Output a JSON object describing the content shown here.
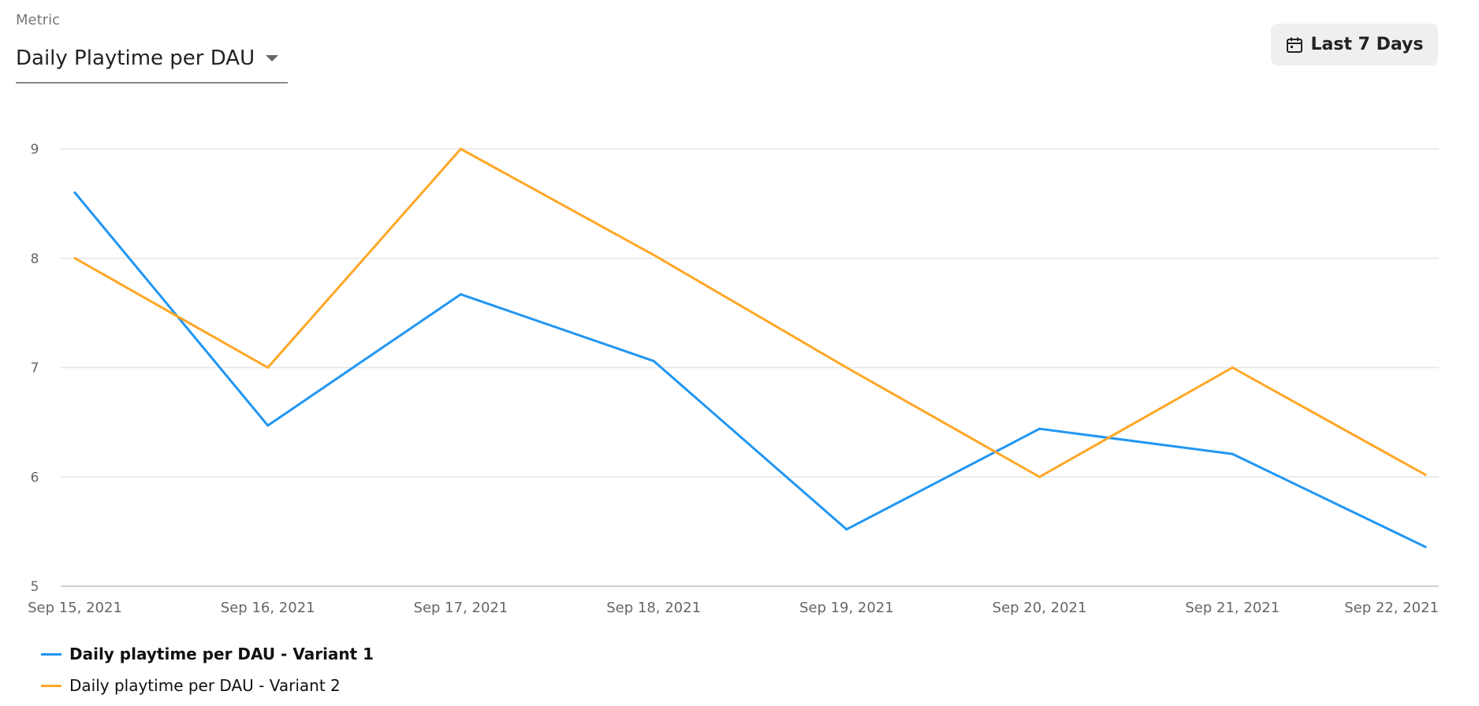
{
  "metric": {
    "label": "Metric",
    "value": "Daily Playtime per DAU",
    "icon": "caret-down-icon"
  },
  "date_range": {
    "label": "Last 7 Days",
    "icon": "calendar-icon"
  },
  "chart_data": {
    "type": "line",
    "title": "",
    "xlabel": "",
    "ylabel": "",
    "categories": [
      "Sep 15, 2021",
      "Sep 16, 2021",
      "Sep 17, 2021",
      "Sep 18, 2021",
      "Sep 19, 2021",
      "Sep 20, 2021",
      "Sep 21, 2021",
      "Sep 22, 2021"
    ],
    "y_ticks": [
      "5",
      "6",
      "7",
      "8",
      "9"
    ],
    "ylim": [
      5,
      9.4
    ],
    "grid": true,
    "legend_position": "bottom-left",
    "series": [
      {
        "name": "Daily playtime per DAU - Variant 1",
        "color": "#2196F3",
        "values": [
          8.6,
          6.47,
          7.67,
          7.06,
          5.52,
          6.44,
          6.21,
          5.36
        ]
      },
      {
        "name": "Daily playtime per DAU - Variant 2",
        "color": "#FFA726",
        "values": [
          8.0,
          7.0,
          9.0,
          8.03,
          7.0,
          6.0,
          7.0,
          6.02
        ]
      }
    ]
  }
}
